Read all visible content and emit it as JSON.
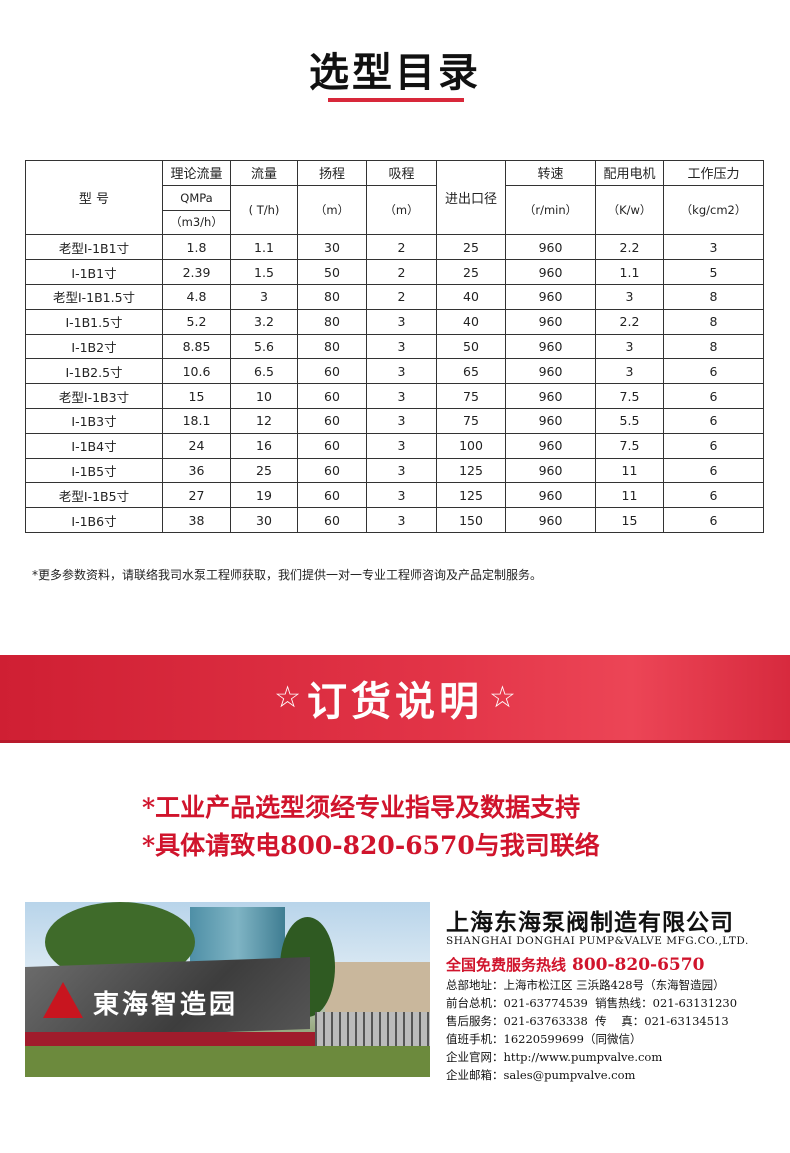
{
  "section_title": "选型目录",
  "table": {
    "headers": {
      "model": "型  号",
      "theory_flow": "理论流量",
      "theory_flow_unit1": "QMPa",
      "theory_flow_unit2": "（m3/h）",
      "flow": "流量",
      "flow_unit": "( T/h)",
      "head": "扬程",
      "head_unit": "（m）",
      "suction": "吸程",
      "suction_unit": "（m）",
      "port": "进出口径",
      "speed": "转速",
      "speed_unit": "（r/min）",
      "motor": "配用电机",
      "motor_unit": "（K/w）",
      "pressure": "工作压力",
      "pressure_unit": "（kg/cm2）"
    },
    "rows": [
      [
        "老型I-1B1寸",
        "1.8",
        "1.1",
        "30",
        "2",
        "25",
        "960",
        "2.2",
        "3"
      ],
      [
        "I-1B1寸",
        "2.39",
        "1.5",
        "50",
        "2",
        "25",
        "960",
        "1.1",
        "5"
      ],
      [
        "老型I-1B1.5寸",
        "4.8",
        "3",
        "80",
        "2",
        "40",
        "960",
        "3",
        "8"
      ],
      [
        "I-1B1.5寸",
        "5.2",
        "3.2",
        "80",
        "3",
        "40",
        "960",
        "2.2",
        "8"
      ],
      [
        "I-1B2寸",
        "8.85",
        "5.6",
        "80",
        "3",
        "50",
        "960",
        "3",
        "8"
      ],
      [
        "I-1B2.5寸",
        "10.6",
        "6.5",
        "60",
        "3",
        "65",
        "960",
        "3",
        "6"
      ],
      [
        "老型I-1B3寸",
        "15",
        "10",
        "60",
        "3",
        "75",
        "960",
        "7.5",
        "6"
      ],
      [
        "I-1B3寸",
        "18.1",
        "12",
        "60",
        "3",
        "75",
        "960",
        "5.5",
        "6"
      ],
      [
        "I-1B4寸",
        "24",
        "16",
        "60",
        "3",
        "100",
        "960",
        "7.5",
        "6"
      ],
      [
        "I-1B5寸",
        "36",
        "25",
        "60",
        "3",
        "125",
        "960",
        "11",
        "6"
      ],
      [
        "老型I-1B5寸",
        "27",
        "19",
        "60",
        "3",
        "125",
        "960",
        "11",
        "6"
      ],
      [
        "I-1B6寸",
        "38",
        "30",
        "60",
        "3",
        "150",
        "960",
        "15",
        "6"
      ]
    ]
  },
  "note": "*更多参数资料，请联络我司水泵工程师获取，我们提供一对一专业工程师咨询及产品定制服务。",
  "banner": {
    "star": "☆",
    "title": "订货说明"
  },
  "order_lines": [
    "*工业产品选型须经专业指导及数据支持",
    "*具体请致电800-820-6570与我司联络"
  ],
  "photo": {
    "sign_text": "東海智造园"
  },
  "company": {
    "cn_name": "上海东海泵阀制造有限公司",
    "en_name": "SHANGHAI DONGHAI PUMP&VALVE MFG.CO.,LTD.",
    "hotline_label": "全国免费服务热线",
    "hotline_number": "800-820-6570",
    "info_lines": [
      "总部地址：上海市松江区 三浜路428号（东海智造园）",
      "前台总机：021-63774539  销售热线：021-63131230",
      "售后服务：021-63763338  传    真：021-63134513",
      "值班手机：16220599699（同微信）",
      "企业官网：http://www.pumpvalve.com",
      "企业邮箱：sales@pumpvalve.com"
    ]
  },
  "colors": {
    "accent_red": "#d8283a",
    "text_red": "#d0142c"
  }
}
